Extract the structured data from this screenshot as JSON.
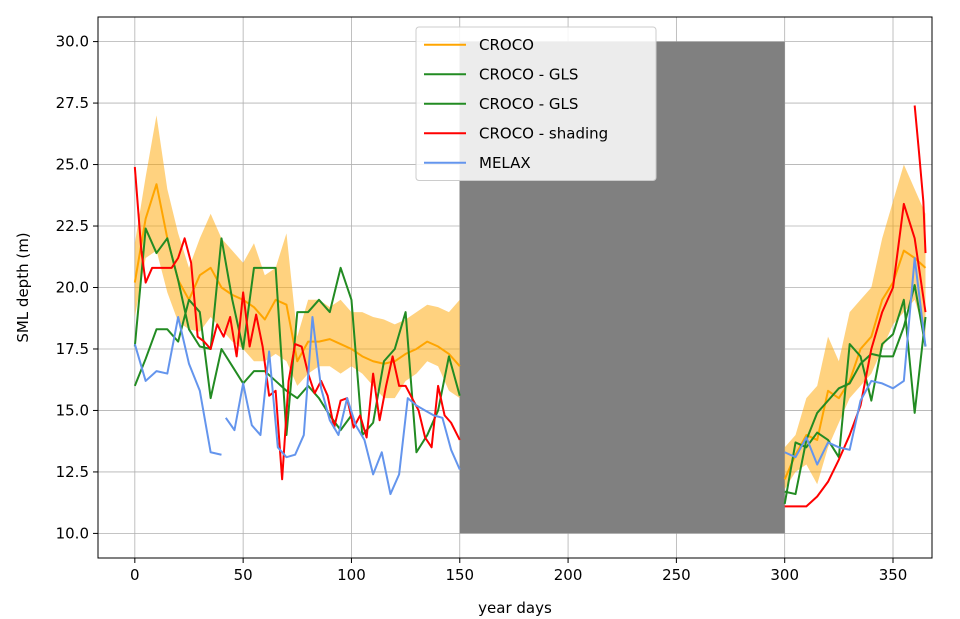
{
  "chart_data": {
    "type": "line",
    "xlabel": "year days",
    "ylabel": "SML depth (m)",
    "xlim": [
      -17,
      368
    ],
    "ylim": [
      9.0,
      31.0
    ],
    "xticks": [
      0,
      50,
      100,
      150,
      200,
      250,
      300,
      350
    ],
    "xtick_labels": [
      "0",
      "50",
      "100",
      "150",
      "200",
      "250",
      "300",
      "350"
    ],
    "yticks": [
      10.0,
      12.5,
      15.0,
      17.5,
      20.0,
      22.5,
      25.0,
      27.5,
      30.0
    ],
    "ytick_labels": [
      "10.0",
      "12.5",
      "15.0",
      "17.5",
      "20.0",
      "22.5",
      "25.0",
      "27.5",
      "30.0"
    ],
    "grid": true,
    "legend_position": "upper-center",
    "masked_region": {
      "x0": 150,
      "x1": 300,
      "y0": 10.0,
      "y1": 30.0,
      "color": "#808080"
    },
    "band": {
      "color": "#ffa500",
      "segments": [
        {
          "x": [
            0,
            5,
            10,
            15,
            20,
            25,
            30,
            35,
            40,
            45,
            50,
            55,
            60,
            65,
            70,
            75,
            80,
            85,
            90,
            95,
            100,
            105,
            110,
            115,
            120,
            125,
            130,
            135,
            140,
            145,
            150
          ],
          "lower": [
            18.8,
            21.2,
            21.5,
            19.8,
            18.6,
            18.3,
            18.2,
            18.8,
            18.3,
            17.8,
            17.5,
            17.0,
            17.0,
            17.3,
            17.0,
            16.0,
            16.5,
            16.8,
            16.8,
            16.5,
            16.8,
            16.5,
            16.0,
            15.5,
            15.5,
            16.2,
            16.5,
            17.0,
            16.8,
            15.8,
            15.5
          ],
          "upper": [
            21.8,
            24.5,
            27.0,
            24.0,
            22.2,
            20.8,
            22.0,
            23.0,
            22.0,
            21.5,
            21.0,
            21.8,
            20.5,
            20.8,
            22.2,
            18.0,
            19.5,
            19.5,
            19.2,
            19.5,
            19.0,
            19.0,
            18.8,
            18.7,
            18.5,
            18.7,
            19.0,
            19.3,
            19.2,
            19.0,
            19.5
          ]
        },
        {
          "x": [
            300,
            305,
            310,
            315,
            320,
            325,
            330,
            335,
            340,
            345,
            350,
            355,
            360,
            365
          ],
          "lower": [
            11.8,
            12.5,
            12.8,
            12.0,
            13.5,
            14.5,
            15.5,
            16.0,
            16.5,
            17.5,
            18.5,
            19.0,
            19.5,
            18.0
          ],
          "upper": [
            13.5,
            14.0,
            15.5,
            16.0,
            18.0,
            17.0,
            19.0,
            19.5,
            20.0,
            22.0,
            23.5,
            25.0,
            24.0,
            23.0
          ]
        }
      ]
    },
    "series": [
      {
        "name": "CROCO",
        "color": "#ffa500",
        "segments": [
          {
            "x": [
              0,
              5,
              10,
              15,
              20,
              25,
              30,
              35,
              40,
              45,
              50,
              55,
              60,
              65,
              70,
              75,
              80,
              85,
              90,
              95,
              100,
              105,
              110,
              115,
              120,
              125,
              130,
              135,
              140,
              145,
              150
            ],
            "y": [
              20.2,
              22.8,
              24.2,
              22.0,
              20.3,
              19.5,
              20.5,
              20.8,
              20.0,
              19.7,
              19.5,
              19.2,
              18.7,
              19.5,
              19.3,
              17.0,
              17.8,
              17.8,
              17.9,
              17.7,
              17.5,
              17.2,
              17.0,
              16.9,
              17.0,
              17.3,
              17.5,
              17.8,
              17.6,
              17.3,
              16.8
            ]
          },
          {
            "x": [
              300,
              305,
              310,
              315,
              320,
              325,
              330,
              335,
              340,
              345,
              350,
              355,
              360,
              365
            ],
            "y": [
              12.2,
              13.2,
              14.0,
              13.8,
              15.8,
              15.5,
              16.2,
              17.5,
              18.0,
              19.5,
              20.2,
              21.5,
              21.2,
              20.8
            ]
          }
        ]
      },
      {
        "name": "CROCO - GLS",
        "color": "#228b22",
        "segments": [
          {
            "x": [
              0,
              5,
              10,
              15,
              20,
              25,
              30,
              35,
              40,
              45,
              50,
              55,
              60,
              65,
              70,
              75,
              80,
              85,
              90,
              95,
              100
            ],
            "y": [
              16.0,
              17.1,
              18.3,
              18.3,
              17.8,
              19.5,
              19.0,
              15.5,
              17.5,
              16.8,
              16.1,
              16.6,
              16.6,
              16.2,
              15.8,
              15.5,
              16.0,
              15.5,
              14.8,
              14.2,
              14.8
            ]
          },
          {
            "x": [
              300,
              305,
              310,
              315,
              320,
              325,
              330,
              335,
              340,
              345,
              350,
              355,
              360,
              365
            ],
            "y": [
              11.7,
              11.6,
              13.8,
              14.9,
              15.4,
              15.9,
              16.1,
              16.9,
              17.3,
              17.2,
              17.2,
              18.4,
              20.1,
              17.6
            ]
          }
        ]
      },
      {
        "name": "CROCO - GLS",
        "color": "#228b22",
        "segments": [
          {
            "x": [
              0,
              5,
              10,
              15,
              20,
              25,
              30,
              35,
              40,
              45,
              50,
              55,
              60,
              65,
              70,
              75,
              80,
              85,
              90,
              95,
              100,
              105,
              110,
              115,
              120,
              125,
              130,
              135,
              140,
              145,
              150
            ],
            "y": [
              17.6,
              22.4,
              21.4,
              22.0,
              20.3,
              18.3,
              17.6,
              17.5,
              22.0,
              19.5,
              17.5,
              20.8,
              20.8,
              20.8,
              14.0,
              19.0,
              19.0,
              19.5,
              19.0,
              20.8,
              19.5,
              14.0,
              14.5,
              17.0,
              17.5,
              19.0,
              13.3,
              14.0,
              15.0,
              17.2,
              15.6
            ]
          },
          {
            "x": [
              300,
              305,
              310,
              315,
              320,
              325,
              330,
              335,
              340,
              345,
              350,
              355,
              360,
              365
            ],
            "y": [
              11.2,
              13.7,
              13.5,
              14.1,
              13.8,
              13.1,
              17.7,
              17.2,
              15.4,
              17.7,
              18.1,
              19.5,
              14.9,
              18.8
            ]
          }
        ]
      },
      {
        "name": "CROCO - shading",
        "color": "#ff0000",
        "segments": [
          {
            "x": [
              0,
              3,
              5,
              8,
              11,
              14,
              17,
              20,
              23,
              26,
              29,
              32,
              35,
              38,
              41,
              44,
              47,
              50,
              53,
              56,
              59,
              62,
              65,
              68,
              71,
              74,
              77,
              80,
              83,
              86,
              89,
              92,
              95,
              98,
              101,
              104,
              107,
              110,
              113,
              116,
              119,
              122,
              125,
              128,
              131,
              134,
              137,
              140,
              143,
              146,
              150
            ],
            "y": [
              24.9,
              21.5,
              20.2,
              20.8,
              20.8,
              20.8,
              20.8,
              21.2,
              22.0,
              21.0,
              18.0,
              17.8,
              17.5,
              18.5,
              18.0,
              18.8,
              17.2,
              19.8,
              17.6,
              18.9,
              17.6,
              15.6,
              15.8,
              12.2,
              16.2,
              17.7,
              17.6,
              16.5,
              15.7,
              16.2,
              15.6,
              14.3,
              15.4,
              15.5,
              14.3,
              14.8,
              13.9,
              16.5,
              14.6,
              16.0,
              17.2,
              16.0,
              16.0,
              15.5,
              15.0,
              13.9,
              13.5,
              16.0,
              14.8,
              14.5,
              13.8
            ]
          },
          {
            "x": [
              300,
              305,
              310,
              315,
              320,
              325,
              330,
              335,
              340,
              345,
              350,
              355,
              360,
              365
            ],
            "y": [
              11.1,
              11.1,
              11.1,
              11.5,
              12.1,
              13.0,
              14.0,
              15.2,
              17.5,
              19.0,
              20.0,
              23.4,
              22.0,
              19.0
            ]
          },
          {
            "x": [
              360,
              362,
              364,
              365
            ],
            "y": [
              27.4,
              25.5,
              23.5,
              21.4
            ]
          }
        ]
      },
      {
        "name": "MELAX",
        "color": "#6495ed",
        "segments": [
          {
            "x": [
              0,
              5,
              10,
              15,
              20,
              25,
              30,
              35,
              40
            ],
            "y": [
              17.7,
              16.2,
              16.6,
              16.5,
              18.8,
              16.9,
              15.8,
              13.3,
              13.2
            ]
          },
          {
            "x": [
              42,
              46,
              50,
              54,
              58,
              62,
              66,
              70,
              74,
              78,
              82,
              86,
              90,
              94,
              98,
              102,
              106,
              110,
              114,
              118,
              122,
              126,
              130,
              134,
              138,
              142,
              146,
              150
            ],
            "y": [
              14.7,
              14.2,
              16.1,
              14.4,
              14.0,
              17.4,
              13.5,
              13.1,
              13.2,
              14.0,
              18.8,
              15.9,
              14.6,
              14.0,
              15.5,
              14.4,
              13.8,
              12.4,
              13.3,
              11.6,
              12.4,
              15.5,
              15.2,
              15.0,
              14.8,
              14.7,
              13.4,
              12.6
            ]
          },
          {
            "x": [
              300,
              305,
              310,
              315,
              320,
              325,
              330,
              335,
              340,
              345,
              350,
              355,
              360,
              365
            ],
            "y": [
              13.3,
              13.1,
              13.9,
              12.8,
              13.7,
              13.5,
              13.4,
              15.4,
              16.2,
              16.1,
              15.9,
              16.2,
              21.2,
              17.6
            ]
          }
        ]
      }
    ]
  }
}
